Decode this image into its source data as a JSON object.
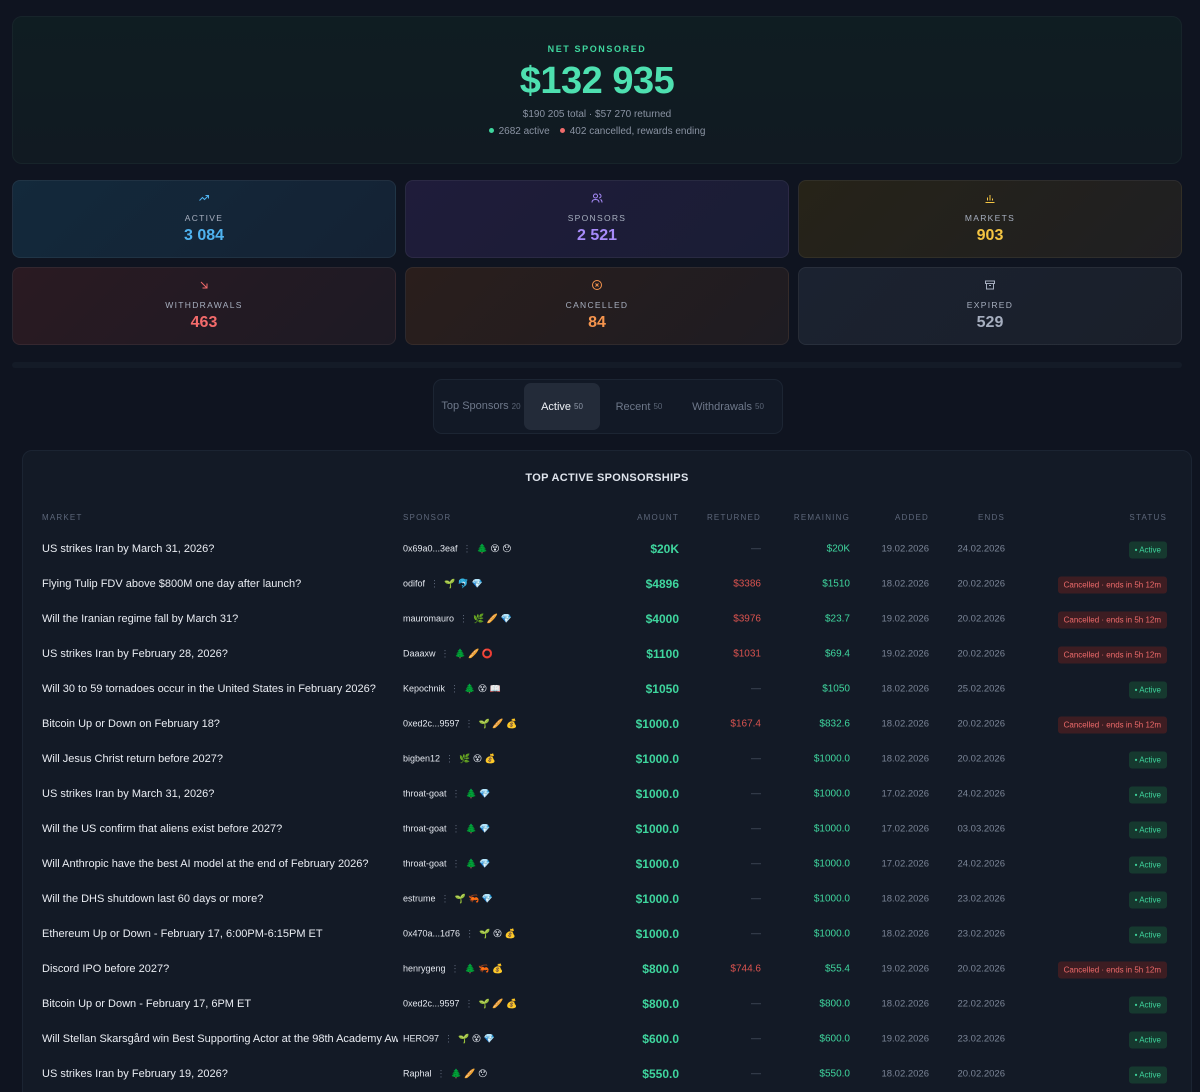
{
  "hero": {
    "label": "NET SPONSORED",
    "value": "$132 935",
    "sub": "$190 205 total · $57 270 returned",
    "active_text": "2682 active",
    "cancelled_text": "402 cancelled, rewards ending",
    "active_color": "#3fd69e",
    "cancelled_color": "#ef6b6b"
  },
  "stats": {
    "active": {
      "label": "ACTIVE",
      "value": "3 084",
      "icon": "trending-up-icon",
      "color": "#4fb3f0"
    },
    "sponsors": {
      "label": "SPONSORS",
      "value": "2 521",
      "icon": "users-icon",
      "color": "#a78bfa"
    },
    "markets": {
      "label": "MARKETS",
      "value": "903",
      "icon": "bar-chart-icon",
      "color": "#f5c542"
    },
    "withdrawals": {
      "label": "WITHDRAWALS",
      "value": "463",
      "icon": "arrow-down-right-icon",
      "color": "#f36b6b"
    },
    "cancelled": {
      "label": "CANCELLED",
      "value": "84",
      "icon": "x-circle-icon",
      "color": "#f5944d"
    },
    "expired": {
      "label": "EXPIRED",
      "value": "529",
      "icon": "archive-icon",
      "color": "#a6aebf"
    }
  },
  "tabs": [
    {
      "label": "Top Sponsors",
      "count": "20"
    },
    {
      "label": "Active",
      "count": "50"
    },
    {
      "label": "Recent",
      "count": "50"
    },
    {
      "label": "Withdrawals",
      "count": "50"
    }
  ],
  "table": {
    "title": "TOP ACTIVE SPONSORSHIPS",
    "columns": {
      "market": "MARKET",
      "sponsor": "SPONSOR",
      "amount": "AMOUNT",
      "returned": "RETURNED",
      "remaining": "REMAINING",
      "added": "ADDED",
      "ends": "ENDS",
      "status": "STATUS"
    },
    "rows": [
      {
        "market": "US strikes Iran by March 31, 2026?",
        "sponsor": "0x69a0...3eaf",
        "emojis": "🌲 😵 😯",
        "amount": "$20K",
        "returned": "—",
        "remaining": "$20K",
        "added": "19.02.2026",
        "ends": "24.02.2026",
        "status": "active",
        "status_text": "• Active"
      },
      {
        "market": "Flying Tulip FDV above $800M one day after launch?",
        "sponsor": "odifof",
        "emojis": "🌱 🐬 💎",
        "amount": "$4896",
        "returned": "$3386",
        "remaining": "$1510",
        "added": "18.02.2026",
        "ends": "20.02.2026",
        "status": "cancelled",
        "status_text": "Cancelled · ends in 5h 12m"
      },
      {
        "market": "Will the Iranian regime fall by March 31?",
        "sponsor": "mauromauro",
        "emojis": "🌿 🥖 💎",
        "amount": "$4000",
        "returned": "$3976",
        "remaining": "$23.7",
        "added": "19.02.2026",
        "ends": "20.02.2026",
        "status": "cancelled",
        "status_text": "Cancelled · ends in 5h 12m"
      },
      {
        "market": "US strikes Iran by February 28, 2026?",
        "sponsor": "Daaaxw",
        "emojis": "🌲 🥖 ⭕",
        "amount": "$1100",
        "returned": "$1031",
        "remaining": "$69.4",
        "added": "19.02.2026",
        "ends": "20.02.2026",
        "status": "cancelled",
        "status_text": "Cancelled · ends in 5h 12m"
      },
      {
        "market": "Will 30 to 59 tornadoes occur in the United States in February 2026?",
        "sponsor": "Kepochnik",
        "emojis": "🌲 😵 📖",
        "amount": "$1050",
        "returned": "—",
        "remaining": "$1050",
        "added": "18.02.2026",
        "ends": "25.02.2026",
        "status": "active",
        "status_text": "• Active"
      },
      {
        "market": "Bitcoin Up or Down on February 18?",
        "sponsor": "0xed2c...9597",
        "emojis": "🌱 🥖 💰",
        "amount": "$1000.0",
        "returned": "$167.4",
        "remaining": "$832.6",
        "added": "18.02.2026",
        "ends": "20.02.2026",
        "status": "cancelled",
        "status_text": "Cancelled · ends in 5h 12m"
      },
      {
        "market": "Will Jesus Christ return before 2027?",
        "sponsor": "bigben12",
        "emojis": "🌿 😵 💰",
        "amount": "$1000.0",
        "returned": "—",
        "remaining": "$1000.0",
        "added": "18.02.2026",
        "ends": "20.02.2026",
        "status": "active",
        "status_text": "• Active"
      },
      {
        "market": "US strikes Iran by March 31, 2026?",
        "sponsor": "throat-goat",
        "emojis": "🌲 💎",
        "amount": "$1000.0",
        "returned": "—",
        "remaining": "$1000.0",
        "added": "17.02.2026",
        "ends": "24.02.2026",
        "status": "active",
        "status_text": "• Active"
      },
      {
        "market": "Will the US confirm that aliens exist before 2027?",
        "sponsor": "throat-goat",
        "emojis": "🌲 💎",
        "amount": "$1000.0",
        "returned": "—",
        "remaining": "$1000.0",
        "added": "17.02.2026",
        "ends": "03.03.2026",
        "status": "active",
        "status_text": "• Active"
      },
      {
        "market": "Will Anthropic have the best AI model at the end of February 2026?",
        "sponsor": "throat-goat",
        "emojis": "🌲 💎",
        "amount": "$1000.0",
        "returned": "—",
        "remaining": "$1000.0",
        "added": "17.02.2026",
        "ends": "24.02.2026",
        "status": "active",
        "status_text": "• Active"
      },
      {
        "market": "Will the DHS shutdown last 60 days or more?",
        "sponsor": "estrume",
        "emojis": "🌱 🦐 💎",
        "amount": "$1000.0",
        "returned": "—",
        "remaining": "$1000.0",
        "added": "18.02.2026",
        "ends": "23.02.2026",
        "status": "active",
        "status_text": "• Active"
      },
      {
        "market": "Ethereum Up or Down - February 17, 6:00PM-6:15PM ET",
        "sponsor": "0x470a...1d76",
        "emojis": "🌱 😵 💰",
        "amount": "$1000.0",
        "returned": "—",
        "remaining": "$1000.0",
        "added": "18.02.2026",
        "ends": "23.02.2026",
        "status": "active",
        "status_text": "• Active"
      },
      {
        "market": "Discord IPO before 2027?",
        "sponsor": "henrygeng",
        "emojis": "🌲 🦐 💰",
        "amount": "$800.0",
        "returned": "$744.6",
        "remaining": "$55.4",
        "added": "19.02.2026",
        "ends": "20.02.2026",
        "status": "cancelled",
        "status_text": "Cancelled · ends in 5h 12m"
      },
      {
        "market": "Bitcoin Up or Down - February 17, 6PM ET",
        "sponsor": "0xed2c...9597",
        "emojis": "🌱 🥖 💰",
        "amount": "$800.0",
        "returned": "—",
        "remaining": "$800.0",
        "added": "18.02.2026",
        "ends": "22.02.2026",
        "status": "active",
        "status_text": "• Active"
      },
      {
        "market": "Will Stellan Skarsgård win Best Supporting Actor at the 98th Academy Awards?",
        "sponsor": "HERO97",
        "emojis": "🌱 😵 💎",
        "amount": "$600.0",
        "returned": "—",
        "remaining": "$600.0",
        "added": "19.02.2026",
        "ends": "23.02.2026",
        "status": "active",
        "status_text": "• Active"
      },
      {
        "market": "US strikes Iran by February 19, 2026?",
        "sponsor": "Raphal",
        "emojis": "🌲 🥖 😯",
        "amount": "$550.0",
        "returned": "—",
        "remaining": "$550.0",
        "added": "18.02.2026",
        "ends": "20.02.2026",
        "status": "active",
        "status_text": "• Active"
      }
    ]
  }
}
